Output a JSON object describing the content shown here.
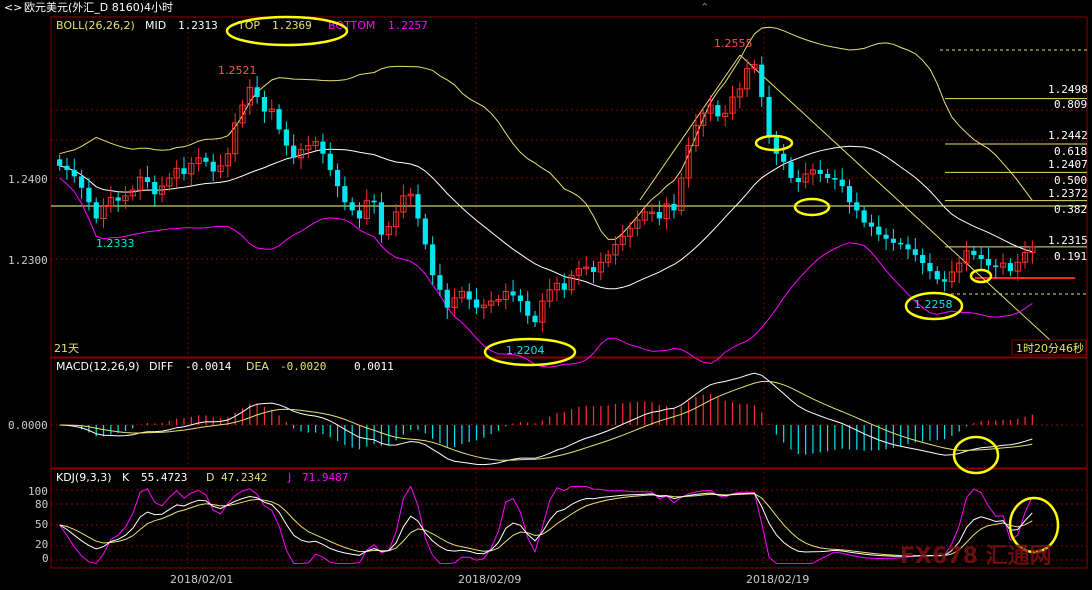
{
  "titlebar": {
    "icon": "<>",
    "title": "欧元美元(外汇_D 8160)4小时"
  },
  "colors": {
    "bg": "#000000",
    "grid": "#8a0000",
    "up": "#ff3030",
    "down": "#00e5ee",
    "mid": "#ffffff",
    "top": "#e8e070",
    "bottom": "#ff00ff",
    "yellow": "#ffff00",
    "dea": "#e8e070",
    "diff": "#ffffff",
    "k": "#ffffff",
    "d": "#e8e070",
    "j": "#ff00ff",
    "fib": "#e8e070"
  },
  "boll_header": {
    "name": "BOLL(26,26,2)",
    "mid_label": "MID",
    "mid_value": "1.2313",
    "top_label": "TOP",
    "top_value": "1.2369",
    "bottom_label": "BOTTOM",
    "bottom_value": "1.2257"
  },
  "price_axis": {
    "labels": [
      "1.2400",
      "1.2300"
    ]
  },
  "price_annotations": {
    "high1": "1.2521",
    "high2": "1.2555",
    "low1": "1.2333",
    "low2": "1.2204",
    "low3": "1.2258",
    "period": "21天",
    "countdown": "1时20分46秒"
  },
  "fib_levels": [
    {
      "price": "1.2498",
      "ratio": "0.809"
    },
    {
      "price": "1.2442",
      "ratio": "0.618"
    },
    {
      "price": "1.2407",
      "ratio": "0.500"
    },
    {
      "price": "1.2372",
      "ratio": "0.382"
    },
    {
      "price": "1.2315",
      "ratio": "0.191"
    }
  ],
  "macd_header": {
    "name": "MACD(12,26,9)",
    "diff_label": "DIFF",
    "diff_value": "-0.0014",
    "dea_label": "DEA",
    "dea_value": "-0.0020",
    "macd_value": "0.0011"
  },
  "macd_axis": {
    "labels": [
      "0.0000"
    ]
  },
  "kdj_header": {
    "name": "KDJ(9,3,3)",
    "k_label": "K",
    "k_value": "55.4723",
    "d_label": "D",
    "d_value": "47.2342",
    "j_label": "J",
    "j_value": "71.9487"
  },
  "kdj_axis": {
    "labels": [
      "100",
      "80",
      "50",
      "20",
      "0"
    ]
  },
  "date_axis": {
    "labels": [
      "2018/02/01",
      "2018/02/09",
      "2018/02/19"
    ]
  },
  "watermark": "FX678 汇通网",
  "chart_data": {
    "type": "candlestick",
    "title": "欧元美元(外汇_D 8160)4小时",
    "x_dates": [
      "2018/02/01",
      "2018/02/09",
      "2018/02/19"
    ],
    "price_ticks": [
      1.24,
      1.23
    ],
    "candles_close": [
      1.2415,
      1.241,
      1.2402,
      1.2388,
      1.237,
      1.235,
      1.2365,
      1.2376,
      1.2372,
      1.2378,
      1.2385,
      1.2401,
      1.2395,
      1.238,
      1.239,
      1.24,
      1.2412,
      1.2405,
      1.2418,
      1.2425,
      1.242,
      1.2408,
      1.2415,
      1.243,
      1.2468,
      1.249,
      1.2512,
      1.25,
      1.2482,
      1.2485,
      1.246,
      1.244,
      1.2425,
      1.2435,
      1.244,
      1.2445,
      1.243,
      1.241,
      1.239,
      1.237,
      1.236,
      1.235,
      1.2372,
      1.237,
      1.233,
      1.234,
      1.2358,
      1.2378,
      1.238,
      1.235,
      1.2318,
      1.228,
      1.2262,
      1.224,
      1.2252,
      1.226,
      1.225,
      1.224,
      1.2243,
      1.2248,
      1.225,
      1.226,
      1.2255,
      1.2248,
      1.223,
      1.2222,
      1.2248,
      1.2262,
      1.227,
      1.2262,
      1.228,
      1.2288,
      1.229,
      1.2284,
      1.2296,
      1.2305,
      1.2318,
      1.2328,
      1.2338,
      1.2348,
      1.2358,
      1.2358,
      1.235,
      1.2368,
      1.236,
      1.24,
      1.244,
      1.2465,
      1.248,
      1.249,
      1.2476,
      1.248,
      1.25,
      1.251,
      1.2535,
      1.254,
      1.25,
      1.245,
      1.243,
      1.242,
      1.24,
      1.2395,
      1.2405,
      1.241,
      1.2405,
      1.24,
      1.2398,
      1.239,
      1.237,
      1.236,
      1.2345,
      1.234,
      1.233,
      1.2325,
      1.232,
      1.2318,
      1.2312,
      1.2305,
      1.2295,
      1.2285,
      1.2275,
      1.2272,
      1.2284,
      1.2295,
      1.231,
      1.2305,
      1.23,
      1.2292,
      1.229,
      1.2295,
      1.2285,
      1.2296,
      1.2308,
      1.2315
    ],
    "boll": {
      "mid": 1.2313,
      "top": 1.2369,
      "bottom": 1.2257
    },
    "annotations": [
      {
        "label": "1.2521",
        "value": 1.2521
      },
      {
        "label": "1.2555",
        "value": 1.2555
      },
      {
        "label": "1.2333",
        "value": 1.2333
      },
      {
        "label": "1.2204",
        "value": 1.2204
      },
      {
        "label": "1.2258",
        "value": 1.2258
      }
    ],
    "fibonacci": [
      {
        "price": 1.2498,
        "ratio": 0.809
      },
      {
        "price": 1.2442,
        "ratio": 0.618
      },
      {
        "price": 1.2407,
        "ratio": 0.5
      },
      {
        "price": 1.2372,
        "ratio": 0.382
      },
      {
        "price": 1.2315,
        "ratio": 0.191
      }
    ],
    "macd": {
      "diff": -0.0014,
      "dea": -0.002,
      "macd": 0.0011,
      "zero": 0.0
    },
    "kdj": {
      "k": 55.4723,
      "d": 47.2342,
      "j": 71.9487,
      "ticks": [
        100,
        80,
        50,
        20,
        0
      ]
    }
  }
}
